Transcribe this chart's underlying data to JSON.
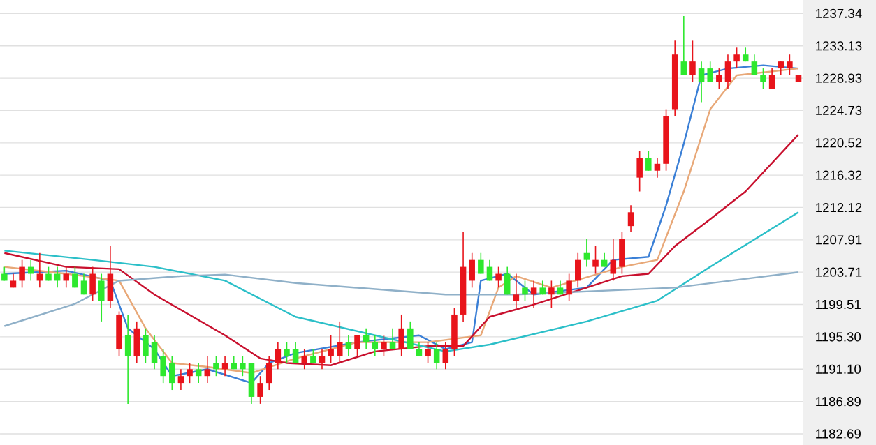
{
  "chart_data": {
    "type": "candlestick",
    "categories": [
      null,
      null,
      null,
      null,
      null,
      null,
      null,
      null,
      null,
      null,
      null,
      null,
      null,
      null,
      null,
      null,
      null,
      null,
      null,
      null,
      null,
      null,
      null,
      null,
      null,
      null,
      null,
      null,
      null,
      null,
      null,
      null,
      null,
      null,
      null,
      null,
      null,
      null,
      null,
      null,
      null,
      null,
      null,
      null,
      null,
      null,
      null,
      null,
      null,
      null,
      null,
      null,
      null,
      null,
      null,
      null,
      null,
      null,
      null,
      null,
      null,
      null,
      null,
      null,
      null,
      null,
      null,
      null,
      null,
      null,
      null,
      null,
      null,
      null,
      null,
      null,
      null,
      null,
      null,
      null,
      null,
      null,
      null,
      null,
      null,
      null,
      null,
      null,
      null,
      null,
      null
    ],
    "ohlc": [
      [
        1203.5,
        1204.4,
        1202.6,
        1202.6
      ],
      [
        1201.7,
        1203.5,
        1201.7,
        1202.6
      ],
      [
        1202.6,
        1205.3,
        1201.7,
        1204.4
      ],
      [
        1204.4,
        1205.3,
        1202.6,
        1203.5
      ],
      [
        1202.6,
        1206.2,
        1201.7,
        1203.5
      ],
      [
        1203.5,
        1204.4,
        1202.6,
        1202.6
      ],
      [
        1203.5,
        1204.4,
        1201.7,
        1202.6
      ],
      [
        1202.6,
        1204.4,
        1201.7,
        1203.5
      ],
      [
        1203.5,
        1204.4,
        1201.7,
        1201.7
      ],
      [
        1202.6,
        1203.5,
        1200.8,
        1200.8
      ],
      [
        1200.8,
        1204.4,
        1200.0,
        1203.5
      ],
      [
        1202.6,
        1203.5,
        1197.3,
        1200.0
      ],
      [
        1200.0,
        1207.1,
        1199.1,
        1203.5
      ],
      [
        1193.7,
        1198.6,
        1192.8,
        1198.2
      ],
      [
        1195.5,
        1198.2,
        1186.6,
        1192.8
      ],
      [
        1192.8,
        1197.3,
        1191.9,
        1196.4
      ],
      [
        1195.5,
        1196.4,
        1191.9,
        1192.8
      ],
      [
        1194.6,
        1195.5,
        1191.1,
        1191.9
      ],
      [
        1192.8,
        1193.7,
        1189.3,
        1190.2
      ],
      [
        1191.9,
        1192.8,
        1188.4,
        1189.3
      ],
      [
        1189.3,
        1191.1,
        1188.4,
        1190.2
      ],
      [
        1190.2,
        1191.9,
        1189.3,
        1191.1
      ],
      [
        1191.1,
        1191.9,
        1189.3,
        1190.2
      ],
      [
        1190.2,
        1192.8,
        1189.3,
        1191.1
      ],
      [
        1191.9,
        1192.8,
        1190.2,
        1191.1
      ],
      [
        1191.1,
        1192.8,
        1190.2,
        1191.9
      ],
      [
        1191.9,
        1192.8,
        1191.1,
        1191.1
      ],
      [
        1191.9,
        1192.8,
        1190.2,
        1191.1
      ],
      [
        1191.9,
        1191.9,
        1186.6,
        1187.5
      ],
      [
        1187.5,
        1190.2,
        1186.6,
        1189.3
      ],
      [
        1189.3,
        1192.8,
        1188.4,
        1191.9
      ],
      [
        1191.9,
        1194.6,
        1191.1,
        1193.7
      ],
      [
        1193.7,
        1194.6,
        1191.9,
        1192.8
      ],
      [
        1193.7,
        1194.6,
        1191.9,
        1191.9
      ],
      [
        1191.9,
        1193.7,
        1191.1,
        1192.8
      ],
      [
        1192.8,
        1193.7,
        1191.9,
        1191.9
      ],
      [
        1191.9,
        1193.7,
        1191.1,
        1192.8
      ],
      [
        1192.8,
        1195.5,
        1191.9,
        1193.7
      ],
      [
        1192.8,
        1197.3,
        1191.9,
        1194.6
      ],
      [
        1194.6,
        1195.5,
        1192.8,
        1193.7
      ],
      [
        1193.7,
        1195.5,
        1192.8,
        1195.5
      ],
      [
        1195.5,
        1196.4,
        1193.7,
        1194.6
      ],
      [
        1194.6,
        1195.5,
        1192.8,
        1193.7
      ],
      [
        1193.7,
        1195.5,
        1192.8,
        1194.6
      ],
      [
        1194.6,
        1196.4,
        1193.7,
        1193.7
      ],
      [
        1193.7,
        1198.2,
        1192.8,
        1196.4
      ],
      [
        1196.4,
        1197.3,
        1193.7,
        1193.7
      ],
      [
        1193.7,
        1194.6,
        1192.8,
        1192.8
      ],
      [
        1192.8,
        1194.6,
        1191.9,
        1193.7
      ],
      [
        1193.7,
        1194.6,
        1191.1,
        1191.9
      ],
      [
        1191.9,
        1194.6,
        1191.1,
        1193.7
      ],
      [
        1193.7,
        1199.1,
        1192.8,
        1198.2
      ],
      [
        1198.2,
        1208.9,
        1197.3,
        1204.4
      ],
      [
        1202.6,
        1206.2,
        1201.7,
        1205.3
      ],
      [
        1205.3,
        1206.2,
        1203.5,
        1203.5
      ],
      [
        1204.4,
        1205.3,
        1202.6,
        1202.6
      ],
      [
        1202.6,
        1204.4,
        1201.7,
        1203.5
      ],
      [
        1203.5,
        1204.4,
        1200.8,
        1200.8
      ],
      [
        1200.0,
        1203.5,
        1199.1,
        1200.8
      ],
      [
        1201.7,
        1202.6,
        1200.0,
        1200.8
      ],
      [
        1200.8,
        1202.6,
        1199.1,
        1201.7
      ],
      [
        1201.7,
        1202.6,
        1200.8,
        1200.8
      ],
      [
        1200.8,
        1202.6,
        1199.1,
        1201.7
      ],
      [
        1201.7,
        1202.6,
        1200.8,
        1200.8
      ],
      [
        1200.8,
        1203.5,
        1200.0,
        1202.6
      ],
      [
        1202.6,
        1206.2,
        1201.7,
        1205.3
      ],
      [
        1206.2,
        1208.0,
        1204.4,
        1205.3
      ],
      [
        1204.4,
        1207.1,
        1203.5,
        1205.3
      ],
      [
        1205.3,
        1206.2,
        1204.4,
        1204.4
      ],
      [
        1203.5,
        1208.0,
        1202.6,
        1205.3
      ],
      [
        1204.4,
        1208.9,
        1203.5,
        1208.0
      ],
      [
        1209.7,
        1212.4,
        1208.9,
        1211.5
      ],
      [
        1216.0,
        1219.5,
        1214.2,
        1218.6
      ],
      [
        1218.6,
        1219.5,
        1216.9,
        1216.9
      ],
      [
        1216.9,
        1218.6,
        1216.0,
        1217.8
      ],
      [
        1217.8,
        1224.9,
        1216.9,
        1224.0
      ],
      [
        1224.9,
        1233.8,
        1224.0,
        1232.0
      ],
      [
        1231.1,
        1237.0,
        1229.3,
        1229.3
      ],
      [
        1229.3,
        1233.8,
        1228.4,
        1231.1
      ],
      [
        1230.2,
        1231.1,
        1225.8,
        1228.4
      ],
      [
        1230.2,
        1231.1,
        1228.4,
        1228.4
      ],
      [
        1228.4,
        1230.2,
        1227.5,
        1229.3
      ],
      [
        1228.4,
        1232.0,
        1227.5,
        1231.1
      ],
      [
        1231.1,
        1232.9,
        1230.2,
        1232.0
      ],
      [
        1232.0,
        1232.9,
        1231.1,
        1231.1
      ],
      [
        1231.1,
        1232.0,
        1229.3,
        1229.3
      ],
      [
        1229.3,
        1230.2,
        1227.5,
        1228.4
      ],
      [
        1227.5,
        1230.2,
        1227.5,
        1229.3
      ],
      [
        1230.2,
        1231.1,
        1229.3,
        1231.1
      ],
      [
        1230.2,
        1232.0,
        1229.3,
        1231.1
      ],
      [
        1228.4,
        1229.3,
        1228.4,
        1229.3
      ]
    ],
    "series": [
      {
        "type": "line",
        "color": "#3a7fd6",
        "values": [
          1203.5,
          null,
          null,
          null,
          null,
          null,
          null,
          1203.9,
          null,
          null,
          null,
          null,
          1202.6,
          null,
          1196.4,
          null,
          null,
          1193.7,
          null,
          1190.2,
          null,
          null,
          null,
          1191.1,
          null,
          null,
          null,
          null,
          1189.3,
          null,
          1191.9,
          null,
          null,
          1193.2,
          null,
          null,
          null,
          null,
          null,
          null,
          1194.6,
          null,
          null,
          null,
          null,
          null,
          null,
          1195.5,
          null,
          null,
          1193.7,
          null,
          null,
          1194.6,
          1202.6,
          null,
          null,
          1203.5,
          null,
          null,
          1200.8,
          null,
          null,
          null,
          null,
          null,
          1201.7,
          null,
          null,
          1205.3,
          null,
          null,
          null,
          1205.7,
          null,
          1212.4,
          null,
          1220.4,
          null,
          1229.3,
          null,
          null,
          1230.2,
          null,
          null,
          null,
          1230.6,
          null,
          null,
          null,
          1230.2
        ]
      },
      {
        "type": "line",
        "color": "#e8a878",
        "values": [
          1204.4,
          null,
          null,
          null,
          null,
          null,
          null,
          1203.5,
          null,
          null,
          null,
          null,
          null,
          1202.6,
          null,
          null,
          1196.4,
          null,
          null,
          1191.9,
          null,
          null,
          null,
          1191.4,
          null,
          null,
          null,
          null,
          1190.6,
          null,
          null,
          null,
          null,
          1192.5,
          null,
          null,
          null,
          null,
          null,
          null,
          1194.6,
          null,
          null,
          null,
          null,
          null,
          null,
          null,
          1194.6,
          null,
          null,
          null,
          null,
          null,
          1195.5,
          null,
          1201.7,
          null,
          1203.2,
          null,
          null,
          null,
          1201.7,
          null,
          null,
          null,
          null,
          null,
          null,
          null,
          1204.4,
          null,
          null,
          null,
          1205.3,
          null,
          null,
          1214.2,
          null,
          null,
          1224.9,
          null,
          null,
          1229.3,
          null,
          null,
          null,
          null,
          null,
          null,
          1230.2
        ]
      },
      {
        "type": "line",
        "color": "#c8102e",
        "values": [
          1206.2,
          null,
          null,
          null,
          null,
          null,
          null,
          1204.4,
          null,
          null,
          null,
          null,
          null,
          1204.1,
          null,
          null,
          null,
          1200.8,
          null,
          null,
          null,
          null,
          null,
          null,
          null,
          1195.5,
          null,
          null,
          null,
          1192.5,
          null,
          null,
          1191.9,
          null,
          null,
          null,
          null,
          1191.6,
          null,
          null,
          null,
          null,
          1193.4,
          null,
          null,
          null,
          null,
          null,
          1194.1,
          null,
          null,
          null,
          1194.1,
          null,
          null,
          1197.9,
          null,
          null,
          null,
          null,
          1199.5,
          null,
          null,
          null,
          null,
          null,
          1201.7,
          null,
          null,
          null,
          1203.2,
          null,
          null,
          1203.5,
          null,
          null,
          1207.1,
          null,
          null,
          null,
          1210.6,
          null,
          null,
          null,
          1214.2,
          null,
          null,
          null,
          null,
          null,
          1221.6
        ]
      },
      {
        "type": "line",
        "color": "#2bbfc8",
        "values": [
          1206.5,
          null,
          null,
          null,
          null,
          null,
          null,
          null,
          null,
          null,
          1205.3,
          null,
          null,
          null,
          null,
          null,
          null,
          1204.4,
          null,
          null,
          null,
          null,
          null,
          null,
          null,
          1202.6,
          null,
          null,
          null,
          null,
          null,
          null,
          null,
          1197.9,
          null,
          null,
          null,
          null,
          null,
          null,
          null,
          null,
          1195.5,
          null,
          null,
          null,
          null,
          null,
          null,
          null,
          1193.4,
          null,
          null,
          null,
          null,
          1194.3,
          null,
          null,
          null,
          null,
          null,
          null,
          null,
          null,
          null,
          null,
          1197.3,
          null,
          null,
          null,
          null,
          null,
          null,
          null,
          1200.0,
          null,
          null,
          null,
          null,
          null,
          1204.4,
          null,
          null,
          null,
          null,
          null,
          null,
          null,
          null,
          null,
          1211.5
        ]
      },
      {
        "type": "line",
        "color": "#8fb0c8",
        "values": [
          1196.7,
          null,
          null,
          null,
          null,
          null,
          null,
          null,
          1199.6,
          null,
          null,
          null,
          null,
          1202.6,
          null,
          null,
          null,
          null,
          null,
          null,
          1203.2,
          null,
          null,
          null,
          null,
          1203.4,
          null,
          null,
          null,
          null,
          null,
          null,
          null,
          1202.3,
          null,
          null,
          null,
          null,
          null,
          null,
          null,
          null,
          null,
          null,
          null,
          null,
          null,
          null,
          null,
          null,
          1200.8,
          null,
          null,
          null,
          null,
          null,
          null,
          null,
          1200.8,
          null,
          null,
          null,
          null,
          null,
          null,
          null,
          null,
          null,
          null,
          null,
          1201.4,
          null,
          null,
          null,
          null,
          null,
          1201.7,
          null,
          null,
          null,
          null,
          null,
          null,
          null,
          null,
          null,
          null,
          null,
          null,
          null,
          1203.7
        ]
      }
    ],
    "ylim": [
      1182.69,
      1237.34
    ],
    "yticks": [
      1182.69,
      1186.89,
      {
        "value": 1191.1,
        "label": "1191.10"
      },
      {
        "value": 1195.3,
        "label": "1195.30"
      },
      1199.51,
      1203.71,
      1207.91,
      1212.12,
      1216.32,
      1220.52,
      1224.73,
      1228.93,
      1233.13,
      1237.34
    ],
    "grid": "y",
    "tick_labels": "y"
  }
}
